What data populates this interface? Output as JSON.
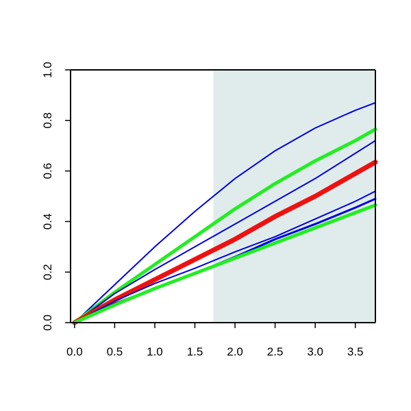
{
  "chart_data": {
    "type": "line",
    "title": "",
    "xlabel": "",
    "ylabel": "",
    "xlim": [
      -0.05,
      3.75
    ],
    "ylim": [
      0,
      1
    ],
    "x_ticks": [
      0.0,
      0.5,
      1.0,
      1.5,
      2.0,
      2.5,
      3.0,
      3.5
    ],
    "x_tick_labels": [
      "0.0",
      "0.5",
      "1.0",
      "1.5",
      "2.0",
      "2.5",
      "3.0",
      "3.5"
    ],
    "y_ticks": [
      0.0,
      0.2,
      0.4,
      0.6,
      0.8,
      1.0
    ],
    "y_tick_labels": [
      "0.0",
      "0.2",
      "0.4",
      "0.6",
      "0.8",
      "1.0"
    ],
    "shaded_region": {
      "x_start": 1.73,
      "x_end": 3.75,
      "color": "#e0ecec"
    },
    "grid": false,
    "legend": "none",
    "series": [
      {
        "color": "#0000dd",
        "style": "thin",
        "x": [
          0,
          0.5,
          1.0,
          1.5,
          2.0,
          2.5,
          3.0,
          3.5,
          3.75
        ],
        "y": [
          0.0,
          0.15,
          0.3,
          0.44,
          0.57,
          0.68,
          0.77,
          0.84,
          0.87
        ]
      },
      {
        "color": "#22ee22",
        "style": "thick",
        "x": [
          0,
          0.5,
          1.0,
          1.5,
          2.0,
          2.5,
          3.0,
          3.5,
          3.75
        ],
        "y": [
          0.0,
          0.12,
          0.23,
          0.34,
          0.45,
          0.55,
          0.64,
          0.72,
          0.765
        ]
      },
      {
        "color": "#0000dd",
        "style": "thin",
        "x": [
          0,
          0.5,
          1.0,
          1.5,
          2.0,
          2.5,
          3.0,
          3.5,
          3.75
        ],
        "y": [
          0.0,
          0.115,
          0.21,
          0.3,
          0.39,
          0.48,
          0.57,
          0.67,
          0.72
        ]
      },
      {
        "color": "#ee1111",
        "style": "thickest",
        "x": [
          0,
          0.5,
          1.0,
          1.5,
          2.0,
          2.5,
          3.0,
          3.5,
          3.75
        ],
        "y": [
          0.0,
          0.09,
          0.17,
          0.25,
          0.33,
          0.42,
          0.5,
          0.59,
          0.635
        ]
      },
      {
        "color": "#0000dd",
        "style": "thin",
        "x": [
          0,
          0.5,
          1.0,
          1.5,
          2.0,
          2.5,
          3.0,
          3.5,
          3.75
        ],
        "y": [
          0.0,
          0.085,
          0.155,
          0.215,
          0.28,
          0.34,
          0.41,
          0.48,
          0.52
        ]
      },
      {
        "color": "#0000dd",
        "style": "medium",
        "x": [
          0,
          0.5,
          1.0,
          1.5,
          2.0,
          2.5,
          3.0,
          3.5,
          3.75
        ],
        "y": [
          0.0,
          0.075,
          0.135,
          0.195,
          0.26,
          0.33,
          0.39,
          0.455,
          0.49
        ]
      },
      {
        "color": "#22ee22",
        "style": "thick",
        "x": [
          0,
          0.5,
          1.0,
          1.5,
          2.0,
          2.5,
          3.0,
          3.5,
          3.75
        ],
        "y": [
          0.0,
          0.07,
          0.135,
          0.195,
          0.255,
          0.315,
          0.375,
          0.435,
          0.465
        ]
      }
    ]
  }
}
